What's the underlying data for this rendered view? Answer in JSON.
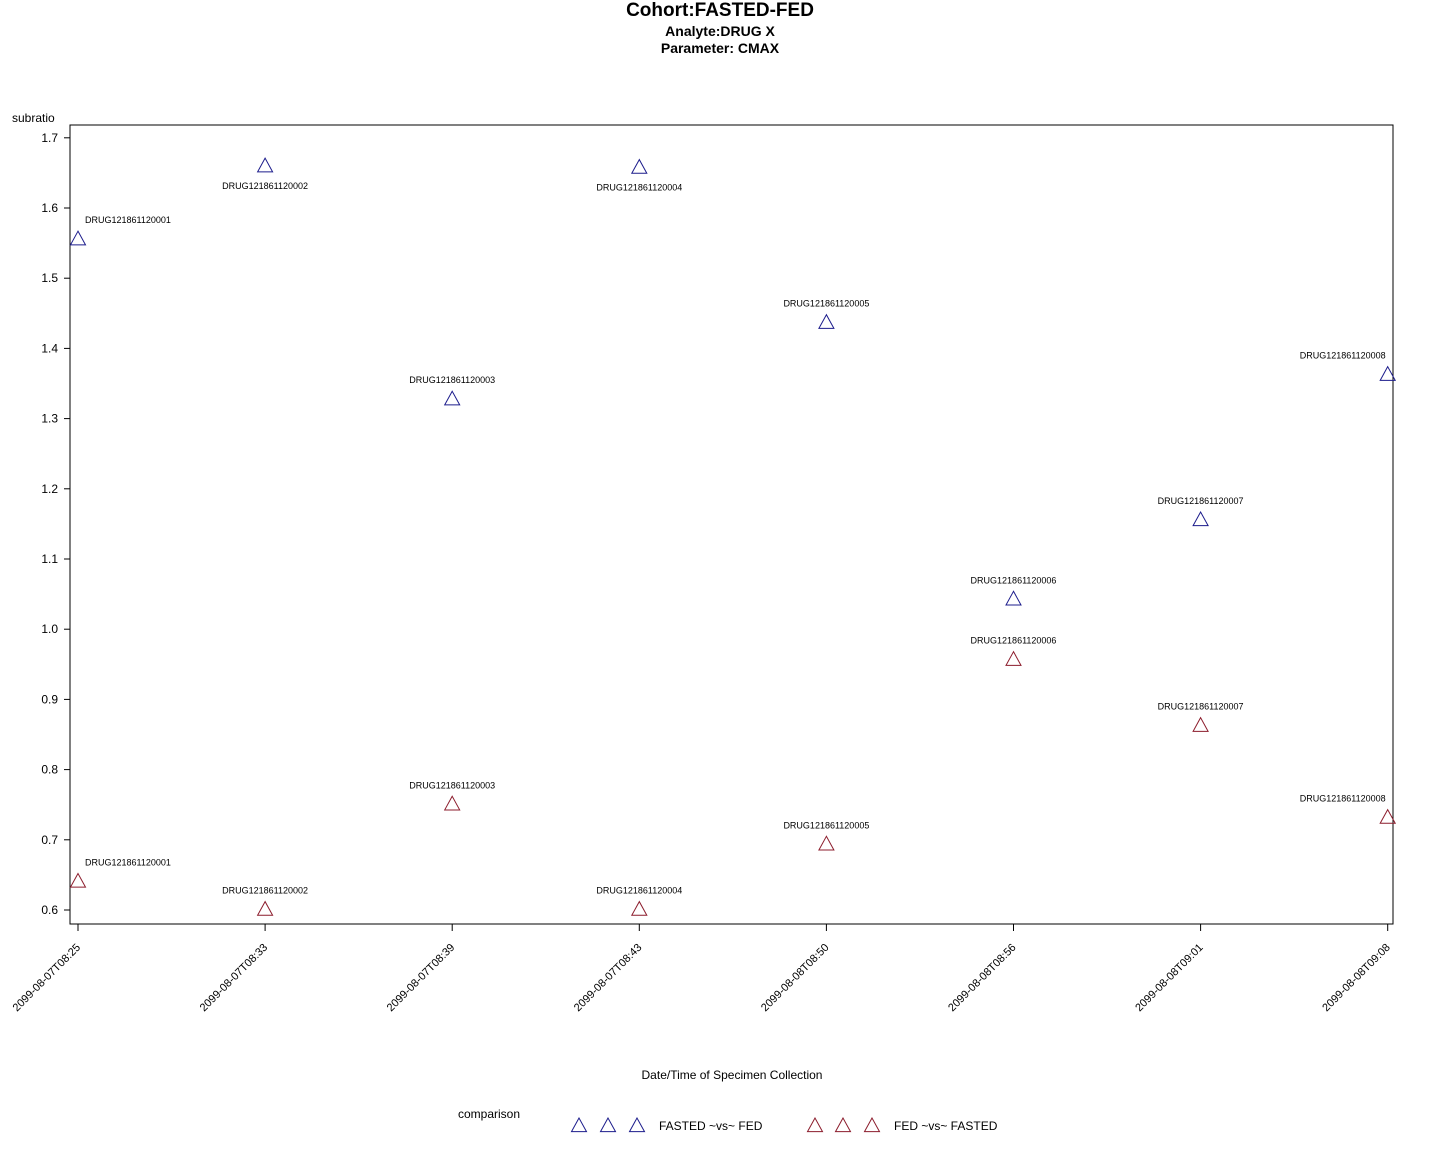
{
  "title": "Cohort:FASTED-FED",
  "subtitle1": "Analyte:DRUG X",
  "subtitle2": "Parameter: CMAX",
  "colors": {
    "fasted_vs_fed": "#1c1c8c",
    "fed_vs_fasted": "#8c1c2c"
  },
  "chart_data": {
    "type": "scatter",
    "title": "Cohort:FASTED-FED",
    "xlabel": "Date/Time of Specimen Collection",
    "ylabel": "subratio",
    "categories": [
      "2099-08-07T08:25",
      "2099-08-07T08:33",
      "2099-08-07T08:39",
      "2099-08-07T08:43",
      "2099-08-08T08:50",
      "2099-08-08T08:56",
      "2099-08-08T09:01",
      "2099-08-08T09:08"
    ],
    "ylim": [
      0.58,
      1.72
    ],
    "yticks": [
      "0.6",
      "0.7",
      "0.8",
      "0.9",
      "1.0",
      "1.1",
      "1.2",
      "1.3",
      "1.4",
      "1.5",
      "1.6",
      "1.7"
    ],
    "grid": false,
    "legend_title": "comparison",
    "legend_position": "bottom",
    "marker": "triangle",
    "series": [
      {
        "name": "FASTED ~vs~ FED",
        "color": "#1c1c8c",
        "values": [
          1.557,
          1.661,
          1.329,
          1.659,
          1.438,
          1.044,
          1.157,
          1.364
        ],
        "labels": [
          "DRUG121861120001",
          "DRUG121861120002",
          "DRUG121861120003",
          "DRUG121861120004",
          "DRUG121861120005",
          "DRUG121861120006",
          "DRUG121861120007",
          "DRUG121861120008"
        ],
        "label_pos": [
          "above",
          "below",
          "above",
          "below",
          "above",
          "above",
          "above",
          "above"
        ]
      },
      {
        "name": "FED ~vs~ FASTED",
        "color": "#8c1c2c",
        "values": [
          0.642,
          0.602,
          0.752,
          0.602,
          0.695,
          0.958,
          0.864,
          0.733
        ],
        "labels": [
          "DRUG121861120001",
          "DRUG121861120002",
          "DRUG121861120003",
          "DRUG121861120004",
          "DRUG121861120005",
          "DRUG121861120006",
          "DRUG121861120007",
          "DRUG121861120008"
        ],
        "label_pos": [
          "above",
          "above",
          "above",
          "above",
          "above",
          "above",
          "above",
          "above"
        ]
      }
    ]
  }
}
